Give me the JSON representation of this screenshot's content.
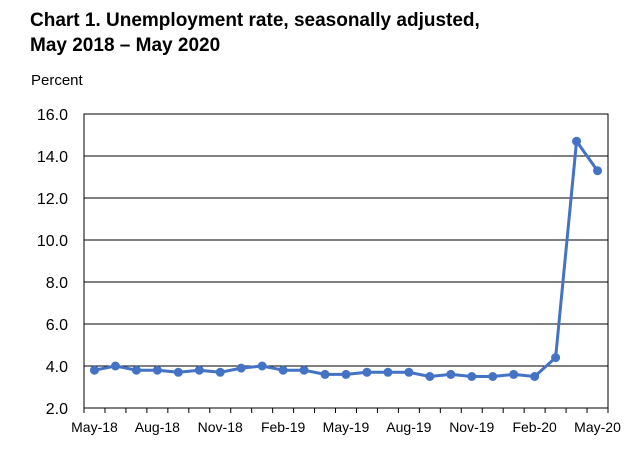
{
  "chart_data": {
    "type": "line",
    "title_line1": "Chart 1. Unemployment rate, seasonally adjusted,",
    "title_line2": "May 2018 – May 2020",
    "ylabel": "Percent",
    "ylim": [
      2.0,
      16.0
    ],
    "yticks": [
      "2.0",
      "4.0",
      "6.0",
      "8.0",
      "10.0",
      "12.0",
      "14.0",
      "16.0"
    ],
    "grid": true,
    "x_tick_labels": [
      "May-18",
      "Aug-18",
      "Nov-18",
      "Feb-19",
      "May-19",
      "Aug-19",
      "Nov-19",
      "Feb-20",
      "May-20"
    ],
    "x": [
      "2018-05",
      "2018-06",
      "2018-07",
      "2018-08",
      "2018-09",
      "2018-10",
      "2018-11",
      "2018-12",
      "2019-01",
      "2019-02",
      "2019-03",
      "2019-04",
      "2019-05",
      "2019-06",
      "2019-07",
      "2019-08",
      "2019-09",
      "2019-10",
      "2019-11",
      "2019-12",
      "2020-01",
      "2020-02",
      "2020-03",
      "2020-04",
      "2020-05"
    ],
    "series": [
      {
        "color": "#4472C4",
        "values": [
          3.8,
          4.0,
          3.8,
          3.8,
          3.7,
          3.8,
          3.7,
          3.9,
          4.0,
          3.8,
          3.8,
          3.6,
          3.6,
          3.7,
          3.7,
          3.7,
          3.5,
          3.6,
          3.5,
          3.5,
          3.6,
          3.5,
          4.4,
          14.7,
          13.3
        ]
      }
    ]
  }
}
